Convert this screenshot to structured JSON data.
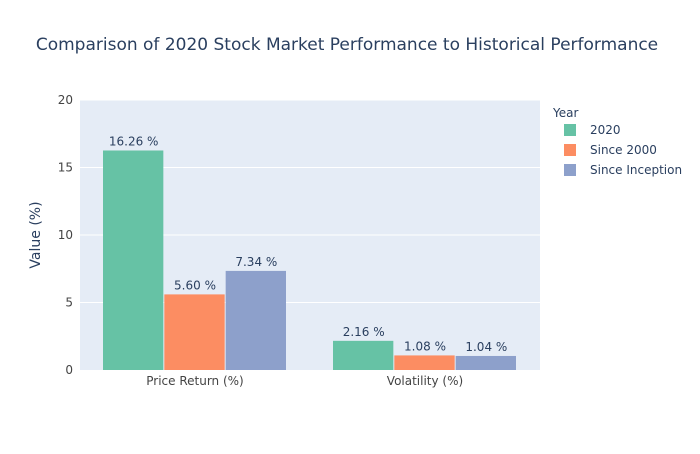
{
  "chart_data": {
    "type": "bar",
    "title": "Comparison of 2020 Stock Market Performance to Historical Performance",
    "xlabel": "",
    "ylabel": "Value (%)",
    "ylim": [
      0,
      20
    ],
    "yticks": [
      0,
      5,
      10,
      15,
      20
    ],
    "grid": true,
    "legend_title": "Year",
    "legend_position": "right",
    "categories": [
      "Price Return (%)",
      "Volatility (%)"
    ],
    "series": [
      {
        "name": "2020",
        "color": "#66c2a5",
        "values": [
          16.26,
          2.16
        ],
        "labels": [
          "16.26 %",
          "2.16 %"
        ]
      },
      {
        "name": "Since 2000",
        "color": "#fc8d62",
        "values": [
          5.6,
          1.08
        ],
        "labels": [
          "5.60 %",
          "1.08 %"
        ]
      },
      {
        "name": "Since Inception",
        "color": "#8da0cb",
        "values": [
          7.34,
          1.04
        ],
        "labels": [
          "7.34 %",
          "1.04 %"
        ]
      }
    ]
  },
  "colors": {
    "plot_background": "#e5ecf6",
    "gridline": "#ffffff",
    "text": "#2a3f5f",
    "title_text": "#2a3f5f",
    "tick_text": "#444444"
  }
}
